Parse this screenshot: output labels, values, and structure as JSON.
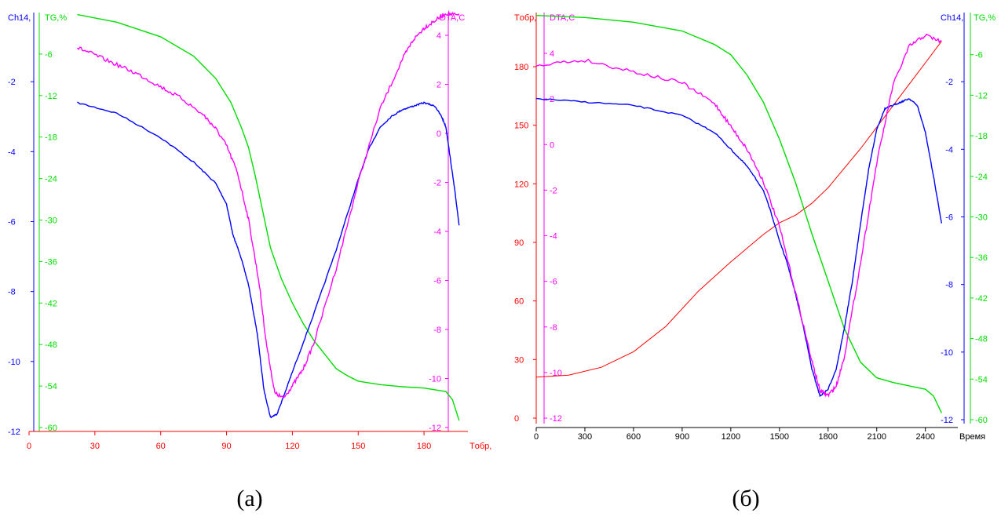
{
  "captions": {
    "a": "(a)",
    "b": "(б)"
  },
  "colors": {
    "red": "#ff0000",
    "blue": "#0000ff",
    "green": "#00dd00",
    "magenta": "#ff00ff",
    "axis": "#000000"
  },
  "chart_data": [
    {
      "type": "line",
      "panel": "a",
      "x_axis": {
        "label": "Tобр,",
        "ticks": [
          0,
          30,
          60,
          90,
          120,
          150,
          180
        ],
        "range": [
          0,
          200
        ]
      },
      "axes": {
        "ch14": {
          "label": "Ch14,",
          "ticks": [
            -2,
            -4,
            -6,
            -8,
            -10,
            -12
          ],
          "range": [
            -12,
            0
          ]
        },
        "tg": {
          "label": "TG,%",
          "ticks": [
            -6,
            -12,
            -18,
            -24,
            -30,
            -36,
            -42,
            -48,
            -54,
            -60
          ],
          "range": [
            -60,
            0
          ]
        },
        "dta": {
          "label": "DTA,C",
          "ticks": [
            4,
            2,
            0,
            -2,
            -4,
            -6,
            -8,
            -10,
            -12
          ],
          "range": [
            -12,
            5.5
          ]
        }
      },
      "series": [
        {
          "axis": "tg",
          "color": "green",
          "x": [
            22,
            40,
            60,
            75,
            85,
            92,
            97,
            100,
            103,
            106,
            110,
            115,
            120,
            125,
            130,
            135,
            140,
            145,
            150,
            160,
            170,
            180,
            190,
            193,
            196
          ],
          "y": [
            -0.3,
            -1.4,
            -3.5,
            -6.3,
            -9.5,
            -13.0,
            -16.8,
            -19.5,
            -23.5,
            -28.0,
            -34.0,
            -38.5,
            -42.0,
            -45.0,
            -47.5,
            -49.5,
            -51.5,
            -52.5,
            -53.3,
            -53.8,
            -54.1,
            -54.3,
            -54.8,
            -56.0,
            -59.0
          ]
        },
        {
          "axis": "ch14",
          "color": "blue",
          "x": [
            22,
            40,
            60,
            75,
            85,
            90,
            93,
            96,
            100,
            104,
            107,
            110,
            113,
            116,
            120,
            130,
            140,
            150,
            155,
            160,
            165,
            170,
            175,
            180,
            185,
            188,
            190,
            192,
            194,
            196
          ],
          "y": [
            -2.6,
            -2.9,
            -3.6,
            -4.3,
            -4.9,
            -5.5,
            -6.4,
            -6.9,
            -7.8,
            -9.2,
            -10.8,
            -11.6,
            -11.5,
            -11.0,
            -10.3,
            -8.6,
            -6.8,
            -4.8,
            -3.9,
            -3.3,
            -3.0,
            -2.8,
            -2.7,
            -2.6,
            -2.7,
            -3.0,
            -3.3,
            -4.2,
            -5.1,
            -6.1
          ]
        },
        {
          "axis": "dta",
          "color": "magenta",
          "x": [
            22,
            30,
            40,
            50,
            60,
            70,
            80,
            85,
            90,
            95,
            100,
            105,
            108,
            112,
            116,
            120,
            125,
            130,
            140,
            150,
            160,
            170,
            175,
            180,
            185,
            190,
            196
          ],
          "y": [
            3.5,
            3.2,
            2.8,
            2.4,
            1.9,
            1.4,
            0.7,
            0.2,
            -0.5,
            -1.6,
            -3.5,
            -6.2,
            -8.5,
            -10.6,
            -10.8,
            -10.3,
            -9.6,
            -8.5,
            -5.5,
            -2.0,
            1.0,
            3.0,
            3.8,
            4.3,
            4.6,
            4.9,
            4.8
          ]
        }
      ]
    },
    {
      "type": "line",
      "panel": "b",
      "x_axis": {
        "label": "Время",
        "ticks": [
          0,
          300,
          600,
          900,
          1200,
          1500,
          1800,
          2100,
          2400
        ],
        "range": [
          0,
          2600
        ]
      },
      "axes": {
        "tobr": {
          "label": "Tобр,",
          "ticks": [
            0,
            30,
            60,
            90,
            120,
            150,
            180
          ],
          "range": [
            0,
            200
          ]
        },
        "dta": {
          "label": "DTA,C",
          "ticks": [
            4,
            2,
            0,
            -2,
            -4,
            -6,
            -8,
            -10,
            -12
          ],
          "range": [
            -12,
            5.5
          ]
        },
        "ch14": {
          "label": "Ch14,",
          "ticks": [
            -2,
            -4,
            -6,
            -8,
            -10,
            -12
          ],
          "range": [
            -12,
            0
          ]
        },
        "tg": {
          "label": "TG,%",
          "ticks": [
            -6,
            -12,
            -18,
            -24,
            -30,
            -36,
            -42,
            -48,
            -54,
            -60
          ],
          "range": [
            -60,
            0
          ]
        }
      },
      "series": [
        {
          "axis": "tobr",
          "color": "red",
          "x": [
            0,
            200,
            400,
            600,
            800,
            1000,
            1200,
            1400,
            1500,
            1600,
            1700,
            1800,
            1900,
            2000,
            2100,
            2200,
            2300,
            2400,
            2500
          ],
          "y": [
            21,
            22,
            26,
            34,
            47,
            65,
            80,
            94,
            100,
            104,
            110,
            118,
            128,
            138,
            149,
            160,
            171,
            182,
            193
          ]
        },
        {
          "axis": "tg",
          "color": "green",
          "x": [
            0,
            300,
            600,
            900,
            1100,
            1200,
            1300,
            1400,
            1500,
            1600,
            1700,
            1800,
            1900,
            2000,
            2100,
            2200,
            2300,
            2400,
            2450,
            2500
          ],
          "y": [
            -0.2,
            -0.5,
            -1.2,
            -2.5,
            -4.5,
            -6.0,
            -9.0,
            -13.0,
            -18.5,
            -25.0,
            -32.5,
            -39.5,
            -46.5,
            -51.5,
            -53.8,
            -54.5,
            -55.0,
            -55.5,
            -56.5,
            -59.0
          ]
        },
        {
          "axis": "ch14",
          "color": "blue",
          "x": [
            0,
            300,
            600,
            900,
            1100,
            1200,
            1300,
            1400,
            1450,
            1500,
            1550,
            1600,
            1650,
            1700,
            1750,
            1800,
            1850,
            1900,
            1950,
            2000,
            2050,
            2100,
            2150,
            2200,
            2250,
            2300,
            2350,
            2400,
            2450,
            2500
          ],
          "y": [
            -2.5,
            -2.6,
            -2.7,
            -3.0,
            -3.5,
            -4.0,
            -4.5,
            -5.2,
            -5.9,
            -6.7,
            -7.4,
            -8.3,
            -9.3,
            -10.5,
            -11.3,
            -11.1,
            -10.5,
            -9.3,
            -7.9,
            -6.2,
            -4.6,
            -3.4,
            -2.8,
            -2.7,
            -2.6,
            -2.5,
            -2.7,
            -3.5,
            -4.8,
            -6.2
          ]
        },
        {
          "axis": "dta",
          "color": "magenta",
          "x": [
            0,
            300,
            600,
            900,
            1100,
            1200,
            1300,
            1400,
            1500,
            1600,
            1700,
            1750,
            1800,
            1850,
            1900,
            2000,
            2100,
            2200,
            2300,
            2400,
            2500
          ],
          "y": [
            3.5,
            3.7,
            3.2,
            2.7,
            1.8,
            0.8,
            -0.2,
            -1.6,
            -3.6,
            -6.5,
            -9.5,
            -10.8,
            -11.0,
            -10.6,
            -9.3,
            -5.2,
            -0.8,
            2.6,
            4.3,
            4.8,
            4.5
          ]
        }
      ]
    }
  ]
}
